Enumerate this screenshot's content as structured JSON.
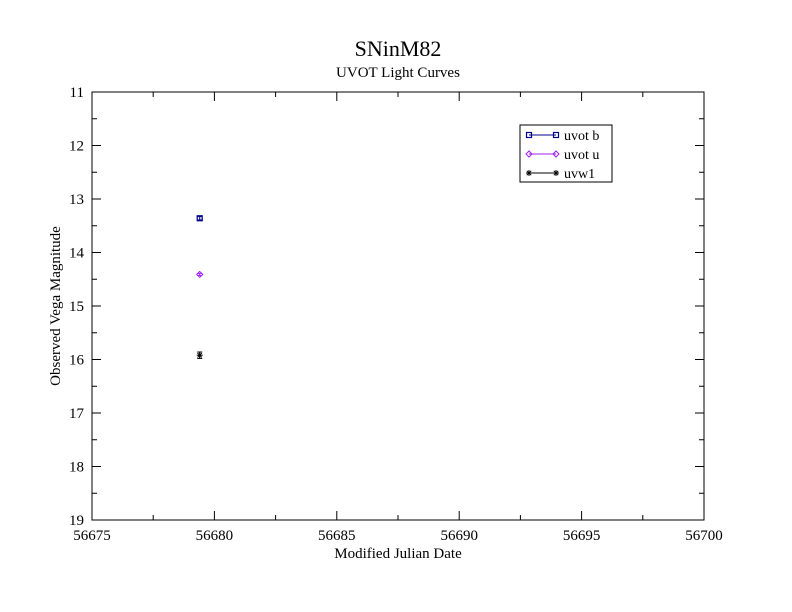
{
  "chart_data": {
    "type": "scatter",
    "title": "SNinM82",
    "subtitle": "UVOT Light Curves",
    "xlabel": "Modified Julian Date",
    "ylabel": "Observed Vega Magnitude",
    "xlim": [
      56675,
      56700
    ],
    "ylim": [
      11,
      19
    ],
    "y_inverted": true,
    "x_ticks": [
      "56675",
      "56680",
      "56685",
      "56690",
      "56695",
      "56700"
    ],
    "y_ticks": [
      "11",
      "12",
      "13",
      "14",
      "15",
      "16",
      "17",
      "18",
      "19"
    ],
    "grid": false,
    "legend_position": "top-right",
    "series": [
      {
        "name": "uvot b",
        "color": "#00008b",
        "marker": "square",
        "x": [
          56679.4
        ],
        "y": [
          13.36
        ],
        "yerr": [
          0.03
        ]
      },
      {
        "name": "uvot u",
        "color": "#a020f0",
        "marker": "diamond",
        "x": [
          56679.4
        ],
        "y": [
          14.41
        ],
        "yerr": [
          0.02
        ]
      },
      {
        "name": "uvw1",
        "color": "#000000",
        "marker": "asterisk",
        "x": [
          56679.4
        ],
        "y": [
          15.92
        ],
        "yerr": [
          0.06
        ]
      }
    ]
  }
}
